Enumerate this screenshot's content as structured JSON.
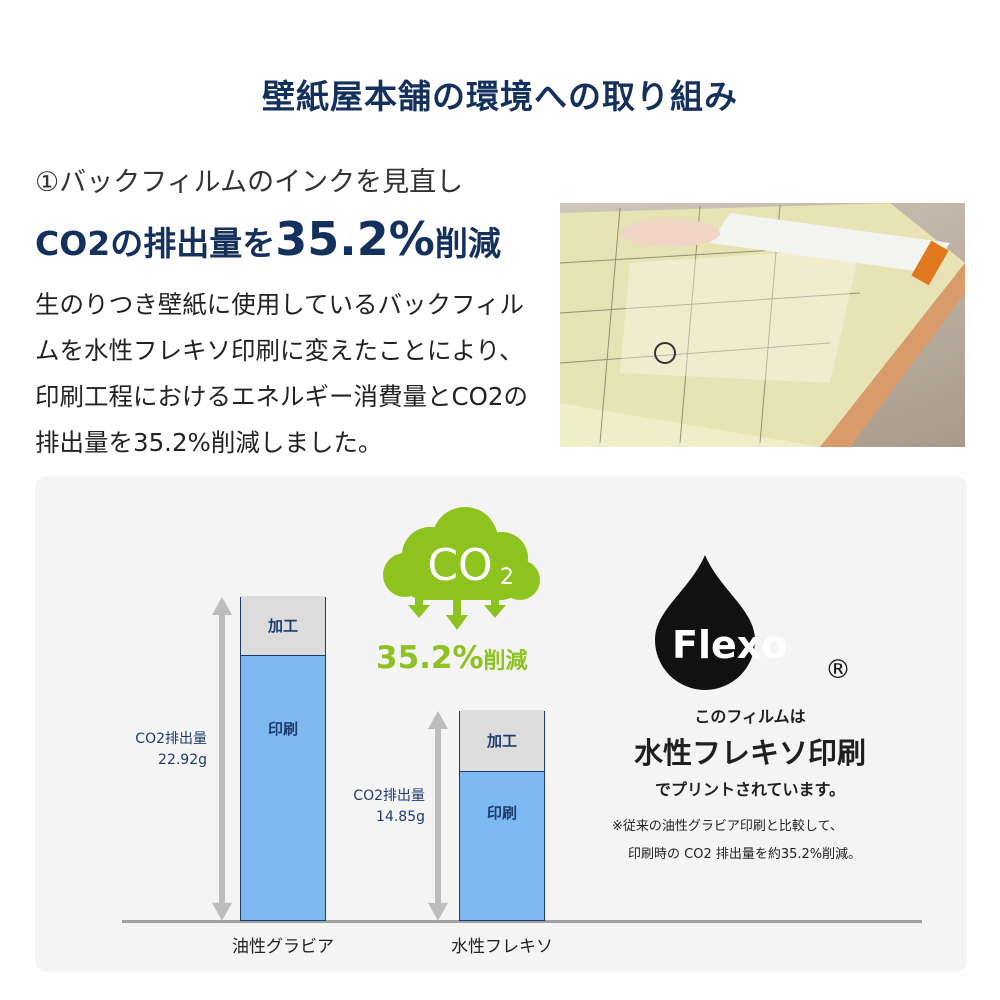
{
  "title": "壁紙屋本舗の環境への取り組み",
  "heading": {
    "line1": "①バックフィルムのインクを見直し",
    "line2_pre": "CO2の排出量を",
    "line2_value": "35.2%",
    "line2_post": "削減"
  },
  "body_text": "生のりつき壁紙に使用しているバックフィルムを水性フレキソ印刷に変えたことにより、印刷工程におけるエネルギー消費量とCO2の排出量を35.2%削減しました。",
  "photo_alt": "壁紙のバックフィルムを剥がす手",
  "badge": {
    "cloud_text": "CO",
    "cloud_sub": "2",
    "reduction": "35.2%",
    "reduction_suffix": "削減",
    "color": "#8dc21f"
  },
  "logo": {
    "text": "Flexo",
    "mark": "®"
  },
  "flexo_text": {
    "line1": "このフィルムは",
    "line2": "水性フレキソ印刷",
    "line3": "でプリントされています。",
    "note1": "※従来の油性グラビア印刷と比較して、",
    "note2": "印刷時の CO2 排出量を約35.2%削減。"
  },
  "chart_data": {
    "type": "bar",
    "stacked": true,
    "categories": [
      "油性グラビア",
      "水性フレキソ"
    ],
    "series": [
      {
        "name": "印刷",
        "values": [
          18.7,
          10.5
        ],
        "color": "#7db9f0"
      },
      {
        "name": "加工",
        "values": [
          4.2,
          4.35
        ],
        "color": "#dcdcdc"
      }
    ],
    "totals": [
      22.92,
      14.85
    ],
    "total_labels": [
      {
        "line1": "CO2排出量",
        "line2": "22.92g"
      },
      {
        "line1": "CO2排出量",
        "line2": "14.85g"
      }
    ],
    "ylim": [
      0,
      22.92
    ]
  }
}
